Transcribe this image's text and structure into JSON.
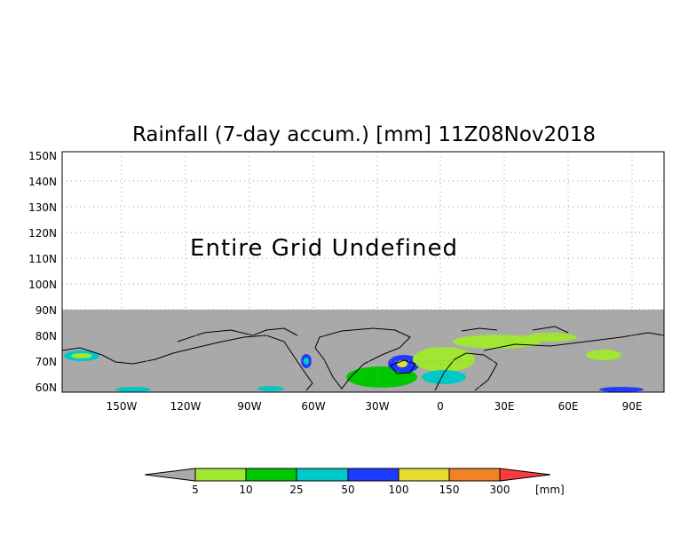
{
  "title": "Rainfall (7-day accum.) [mm] 11Z08Nov2018",
  "note": "Entire Grid Undefined",
  "lat_ticks": [
    "150N",
    "140N",
    "130N",
    "120N",
    "110N",
    "100N",
    "90N",
    "80N",
    "70N",
    "60N"
  ],
  "lon_ticks": [
    "150W",
    "120W",
    "90W",
    "60W",
    "30W",
    "0",
    "30E",
    "60E",
    "90E"
  ],
  "colorbar": {
    "labels": [
      "5",
      "10",
      "25",
      "50",
      "100",
      "150",
      "300"
    ],
    "unit": "[mm]",
    "under_color": "#a9a9a9",
    "colors": [
      "#a0e632",
      "#00c800",
      "#00c8c8",
      "#1e3cff",
      "#e6dc32",
      "#f08228",
      "#fa3c3c"
    ]
  },
  "colors": {
    "undefined_fill": "#a9a9a9",
    "grid": "#9a9a9a",
    "coastline": "#000000"
  }
}
